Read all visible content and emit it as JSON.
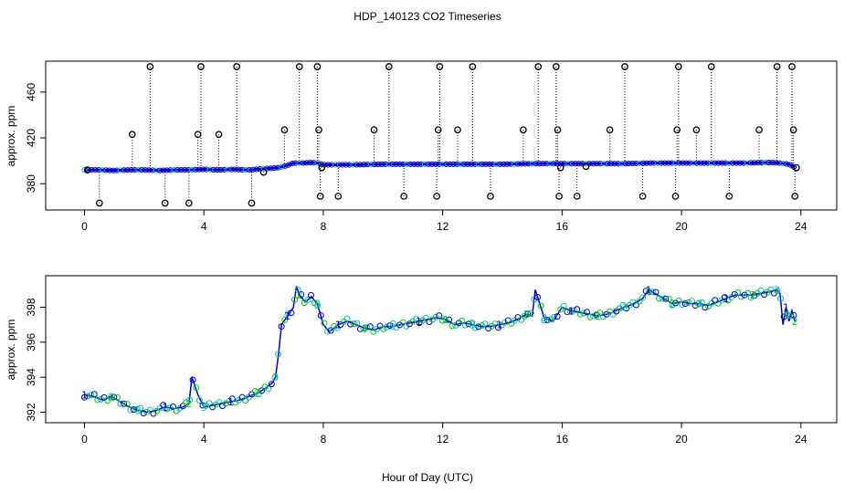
{
  "title": "HDP_140123  CO2 Timeseries",
  "colors": {
    "background": "#ffffff",
    "axes": "#000000",
    "raw_points": "#000000",
    "series_line": "#0000cc",
    "series_points_primary": "#0000cc",
    "series_points_secondary": "#00cc00",
    "series_points_tertiary": "#00bfbf"
  },
  "chart_data": [
    {
      "type": "scatter",
      "panel": "top",
      "xlabel": "",
      "ylabel": "approx. ppm",
      "xlim": [
        -1.3,
        25.2
      ],
      "ylim": [
        357,
        487
      ],
      "xticks": [
        0,
        4,
        8,
        12,
        16,
        20,
        24
      ],
      "yticks": [
        380,
        420,
        460
      ],
      "grid": false,
      "description_of_marks": "open circles with dotted vertical droplines to the series level; dense blue/cyan baseline",
      "baseline": {
        "x": [
          0,
          0.5,
          1,
          1.5,
          2,
          2.5,
          3,
          3.5,
          4,
          4.5,
          5,
          5.5,
          6,
          6.3,
          6.5,
          6.8,
          7,
          7.3,
          7.6,
          7.8,
          8,
          9,
          10,
          11,
          12,
          13,
          14,
          15,
          16,
          17,
          18,
          19,
          20,
          21,
          22,
          23,
          23.3,
          23.6,
          23.8
        ],
        "y": [
          392,
          392,
          391.5,
          392,
          392,
          391.5,
          392,
          392,
          392.5,
          392,
          392.5,
          392,
          393,
          393.5,
          394,
          396,
          398,
          398,
          398.5,
          398,
          396.5,
          396.5,
          397,
          397,
          397,
          397,
          397,
          397.5,
          397.5,
          397.5,
          397.5,
          398,
          398,
          398,
          398,
          398.5,
          398,
          397,
          394
        ]
      },
      "outliers": {
        "x": [
          0.1,
          0.5,
          1.6,
          2.2,
          2.7,
          3.5,
          3.8,
          3.9,
          4.5,
          5.1,
          5.6,
          6.0,
          6.7,
          7.2,
          7.8,
          7.85,
          7.9,
          7.95,
          8.5,
          9.7,
          10.2,
          10.7,
          11.8,
          11.85,
          11.9,
          12.5,
          13.0,
          13.6,
          14.7,
          15.2,
          15.8,
          15.85,
          15.9,
          15.95,
          16.5,
          16.8,
          17.6,
          18.1,
          18.7,
          19.8,
          19.85,
          19.9,
          20.5,
          21.0,
          21.6,
          22.6,
          23.2,
          23.7,
          23.75,
          23.8,
          23.85
        ],
        "y": [
          392,
          363,
          423,
          484,
          363,
          363,
          423,
          484,
          423,
          484,
          363,
          390,
          427,
          489,
          489,
          427,
          369,
          394,
          369,
          427,
          489,
          369,
          369,
          427,
          489,
          427,
          489,
          369,
          427,
          489,
          489,
          427,
          369,
          394,
          369,
          395,
          427,
          489,
          369,
          369,
          427,
          489,
          427,
          489,
          369,
          427,
          489,
          489,
          427,
          369,
          394
        ]
      }
    },
    {
      "type": "line",
      "panel": "bottom",
      "xlabel": "Hour of Day (UTC)",
      "ylabel": "approx. ppm",
      "xlim": [
        -1.3,
        25.2
      ],
      "ylim": [
        391.4,
        399.8
      ],
      "xticks": [
        0,
        4,
        8,
        12,
        16,
        20,
        24
      ],
      "yticks": [
        392,
        394,
        396,
        398
      ],
      "grid": false,
      "description_of_marks": "blue line with numeric plotting symbols (1, 2, 3) in blue, green and cyan",
      "x": [
        0,
        0.3,
        0.6,
        0.9,
        1.2,
        1.5,
        1.8,
        2.1,
        2.4,
        2.7,
        3.0,
        3.3,
        3.5,
        3.6,
        3.8,
        4.0,
        4.3,
        4.6,
        4.9,
        5.2,
        5.5,
        5.8,
        6.1,
        6.3,
        6.4,
        6.5,
        6.6,
        6.8,
        7.0,
        7.1,
        7.2,
        7.4,
        7.6,
        7.8,
        8.0,
        8.2,
        8.5,
        8.8,
        9.1,
        9.4,
        9.7,
        10.0,
        10.3,
        10.6,
        10.9,
        11.2,
        11.5,
        11.8,
        12.1,
        12.4,
        12.7,
        13.0,
        13.3,
        13.6,
        13.9,
        14.2,
        14.5,
        14.8,
        15.0,
        15.1,
        15.4,
        15.7,
        16.0,
        16.3,
        16.6,
        16.9,
        17.2,
        17.5,
        17.8,
        18.1,
        18.4,
        18.7,
        18.9,
        19.1,
        19.4,
        19.7,
        20.0,
        20.3,
        20.6,
        20.9,
        21.2,
        21.5,
        21.8,
        22.1,
        22.4,
        22.7,
        23.0,
        23.2,
        23.3,
        23.4,
        23.5,
        23.6,
        23.7,
        23.8
      ],
      "y": [
        393.0,
        392.9,
        392.7,
        392.9,
        392.6,
        392.3,
        392.1,
        392.0,
        392.1,
        392.3,
        392.2,
        392.3,
        392.5,
        394.0,
        393.0,
        392.3,
        392.4,
        392.5,
        392.6,
        392.7,
        392.9,
        393.1,
        393.4,
        393.7,
        394.0,
        395.3,
        397.0,
        397.5,
        398.0,
        399.2,
        398.7,
        398.3,
        398.6,
        398.2,
        397.0,
        396.6,
        397.0,
        397.2,
        397.0,
        396.8,
        396.7,
        396.9,
        396.9,
        397.0,
        397.1,
        397.2,
        397.3,
        397.4,
        397.3,
        397.0,
        397.1,
        397.0,
        396.9,
        396.9,
        397.0,
        397.1,
        397.3,
        397.6,
        397.5,
        399.0,
        397.4,
        397.2,
        398.0,
        397.8,
        397.7,
        397.6,
        397.5,
        397.6,
        397.8,
        398.0,
        398.2,
        398.5,
        399.0,
        398.8,
        398.5,
        398.2,
        398.3,
        398.2,
        398.2,
        398.1,
        398.3,
        398.5,
        398.7,
        398.7,
        398.7,
        398.8,
        398.9,
        399.0,
        398.8,
        397.0,
        398.0,
        397.2,
        397.8,
        397.2
      ]
    }
  ]
}
